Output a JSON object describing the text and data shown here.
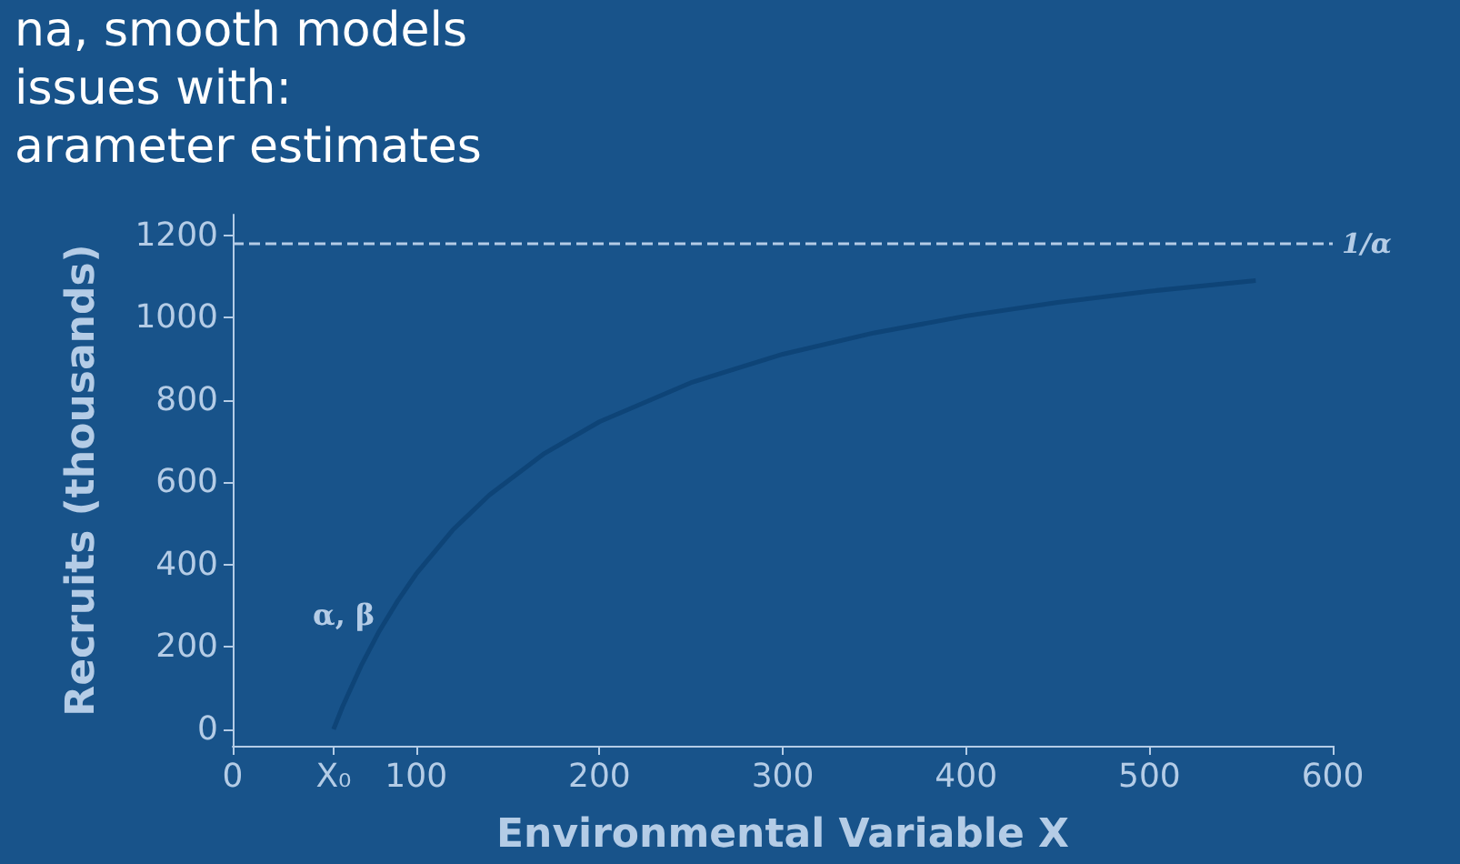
{
  "chart_data": {
    "type": "line",
    "xlabel": "Environmental Variable X",
    "ylabel": "Recruits (thousands)",
    "x": [
      55,
      60,
      70,
      80,
      90,
      100,
      120,
      140,
      170,
      200,
      250,
      300,
      350,
      400,
      450,
      500,
      558
    ],
    "series": [
      {
        "color": "#0e4477",
        "values": [
          0,
          56,
          154,
          239,
          312,
          377,
          484,
          569,
          670,
          747,
          842,
          911,
          963,
          1004,
          1037,
          1064,
          1090
        ]
      }
    ],
    "xlim": [
      0,
      600
    ],
    "xticks": [
      0,
      {
        "value": 55,
        "label": "X₀"
      },
      100,
      200,
      300,
      400,
      500,
      600
    ],
    "ylim": [
      -40,
      1250
    ],
    "yticks": [
      0,
      200,
      400,
      600,
      800,
      1000,
      1200
    ],
    "ref_lines": [
      {
        "axis": "y",
        "value": 1180,
        "label": "1/α",
        "color": "#b4cce6",
        "line_style": "dashed"
      }
    ],
    "annotations": [
      "α, β",
      "na, smooth models",
      "issues with:",
      "arameter estimates"
    ],
    "grid": false,
    "marker": "none",
    "line_style": "solid"
  }
}
